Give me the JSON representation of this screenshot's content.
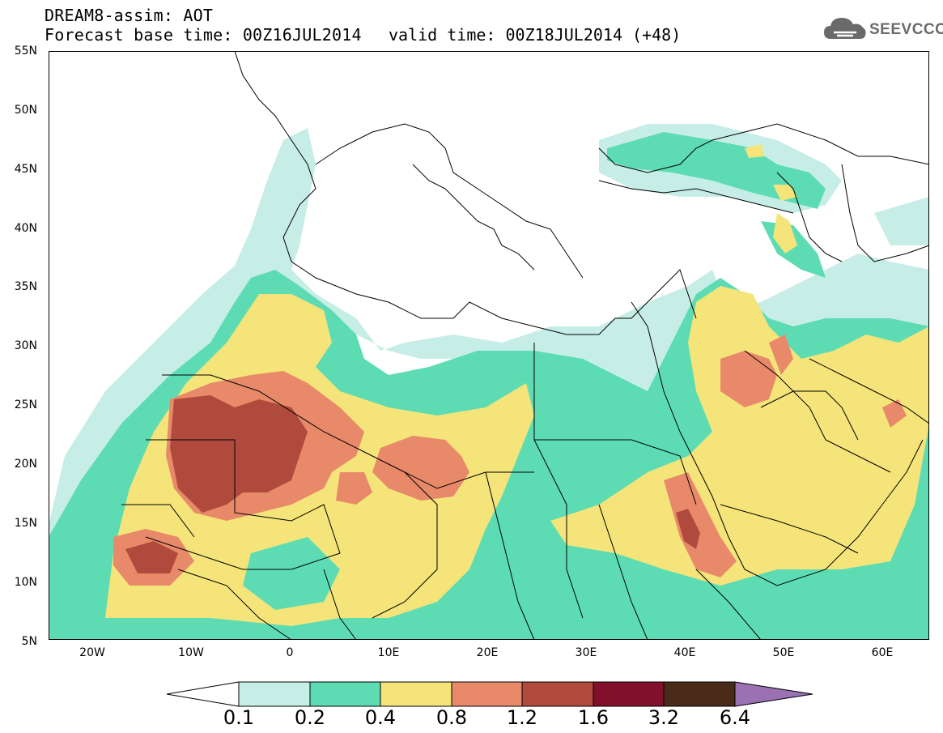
{
  "header": {
    "line1": "DREAM8-assim: AOT",
    "line2": "Forecast base time: 00Z16JUL2014",
    "valid": "valid time: 00Z18JUL2014 (+48)"
  },
  "logo": {
    "text": "SEEVCCC",
    "icon": "cloud-icon"
  },
  "map": {
    "lat_labels": [
      "55N",
      "50N",
      "45N",
      "40N",
      "35N",
      "30N",
      "25N",
      "20N",
      "15N",
      "10N",
      "5N"
    ],
    "lon_labels": [
      "20W",
      "10W",
      "0",
      "10E",
      "20E",
      "30E",
      "40E",
      "50E",
      "60E"
    ]
  },
  "legend": {
    "labels": [
      "0.1",
      "0.2",
      "0.4",
      "0.8",
      "1.2",
      "1.6",
      "3.2",
      "6.4"
    ],
    "colors": [
      "#ffffff",
      "#c6eee6",
      "#5ddcb4",
      "#f4e47a",
      "#e8896a",
      "#b04a3c",
      "#82102c",
      "#4a2a18",
      "#9a72b4"
    ]
  }
}
